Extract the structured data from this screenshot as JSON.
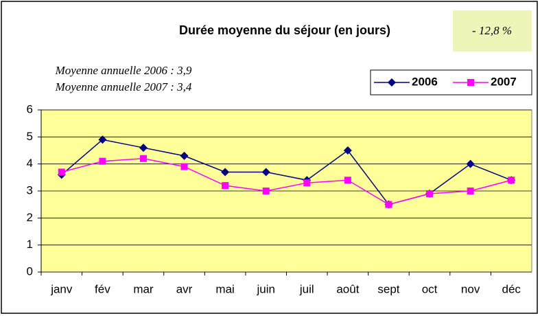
{
  "chart_data": {
    "type": "line",
    "title": "Durée moyenne du séjour (en jours)",
    "annotations": [
      "- 12,8 %",
      "Moyenne annuelle 2006 : 3,9",
      "Moyenne annuelle 2007 : 3,4"
    ],
    "categories": [
      "janv",
      "fév",
      "mar",
      "avr",
      "mai",
      "juin",
      "juil",
      "août",
      "sept",
      "oct",
      "nov",
      "déc"
    ],
    "series": [
      {
        "name": "2006",
        "color": "#000080",
        "marker": "diamond",
        "values": [
          3.6,
          4.9,
          4.6,
          4.3,
          3.7,
          3.7,
          3.4,
          4.5,
          2.5,
          2.9,
          4.0,
          3.4
        ]
      },
      {
        "name": "2007",
        "color": "#ff00ff",
        "marker": "square",
        "values": [
          3.7,
          4.1,
          4.2,
          3.9,
          3.2,
          3.0,
          3.3,
          3.4,
          2.5,
          2.9,
          3.0,
          3.4
        ]
      }
    ],
    "ylim": [
      0,
      6
    ],
    "yticks": [
      0,
      1,
      2,
      3,
      4,
      5,
      6
    ],
    "grid": true,
    "legend": "top-right"
  }
}
